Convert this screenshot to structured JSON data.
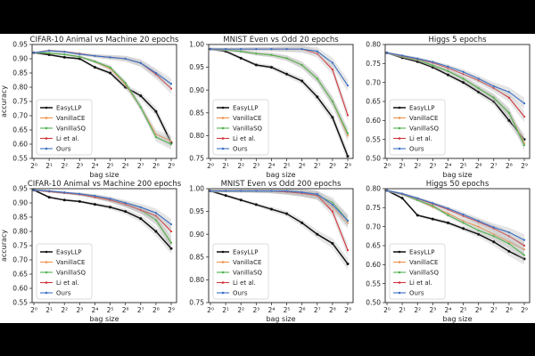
{
  "chart_data": [
    {
      "type": "line",
      "title": "CIFAR-10 Animal vs Machine 20 epochs",
      "xlabel": "bag size",
      "ylabel": "accuracy",
      "xscale": "log2",
      "x": [
        1,
        2,
        4,
        8,
        16,
        32,
        64,
        128,
        256,
        512
      ],
      "x_tick_labels": [
        "2⁰",
        "2¹",
        "2²",
        "2³",
        "2⁴",
        "2⁵",
        "2⁶",
        "2⁷",
        "2⁸",
        "2⁹"
      ],
      "ylim": [
        0.55,
        0.95
      ],
      "y_ticks": [
        0.55,
        0.6,
        0.65,
        0.7,
        0.75,
        0.8,
        0.85,
        0.9,
        0.95
      ],
      "legend_position": "lower-left",
      "series": [
        {
          "name": "EasyLLP",
          "values": [
            0.921,
            0.914,
            0.905,
            0.9,
            0.87,
            0.85,
            0.8,
            0.77,
            0.715,
            0.605
          ]
        },
        {
          "name": "VanillaCE",
          "values": [
            0.921,
            0.92,
            0.915,
            0.907,
            0.89,
            0.865,
            0.81,
            0.73,
            0.635,
            0.61
          ]
        },
        {
          "name": "VanillaSQ",
          "values": [
            0.921,
            0.92,
            0.915,
            0.907,
            0.89,
            0.87,
            0.815,
            0.73,
            0.625,
            0.6
          ]
        },
        {
          "name": "Li et al.",
          "values": [
            0.921,
            0.929,
            0.925,
            0.918,
            0.91,
            0.905,
            0.9,
            0.885,
            0.845,
            0.795
          ]
        },
        {
          "name": "Ours",
          "values": [
            0.921,
            0.928,
            0.924,
            0.916,
            0.91,
            0.905,
            0.9,
            0.885,
            0.85,
            0.812
          ]
        }
      ]
    },
    {
      "type": "line",
      "title": "MNIST Even vs Odd 20 epochs",
      "xlabel": "bag size",
      "ylabel": "",
      "xscale": "log2",
      "x": [
        1,
        2,
        4,
        8,
        16,
        32,
        64,
        128,
        256,
        512
      ],
      "x_tick_labels": [
        "2⁰",
        "2¹",
        "2²",
        "2³",
        "2⁴",
        "2⁵",
        "2⁶",
        "2⁷",
        "2⁸",
        "2⁹"
      ],
      "ylim": [
        0.75,
        1.0
      ],
      "y_ticks": [
        0.75,
        0.8,
        0.85,
        0.9,
        0.95,
        1.0
      ],
      "legend_position": "lower-left",
      "series": [
        {
          "name": "EasyLLP",
          "values": [
            0.99,
            0.985,
            0.97,
            0.955,
            0.95,
            0.935,
            0.92,
            0.885,
            0.84,
            0.755
          ]
        },
        {
          "name": "VanillaCE",
          "values": [
            0.99,
            0.988,
            0.985,
            0.98,
            0.977,
            0.97,
            0.955,
            0.925,
            0.875,
            0.8
          ]
        },
        {
          "name": "VanillaSQ",
          "values": [
            0.99,
            0.988,
            0.985,
            0.98,
            0.977,
            0.97,
            0.955,
            0.925,
            0.875,
            0.805
          ]
        },
        {
          "name": "Li et al.",
          "values": [
            0.99,
            0.99,
            0.99,
            0.99,
            0.99,
            0.99,
            0.99,
            0.98,
            0.945,
            0.845
          ]
        },
        {
          "name": "Ours",
          "values": [
            0.99,
            0.99,
            0.99,
            0.99,
            0.99,
            0.99,
            0.99,
            0.985,
            0.96,
            0.91
          ]
        }
      ]
    },
    {
      "type": "line",
      "title": "Higgs 5 epochs",
      "xlabel": "bag size",
      "ylabel": "",
      "xscale": "log2",
      "x": [
        1,
        2,
        4,
        8,
        16,
        32,
        64,
        128,
        256,
        512
      ],
      "x_tick_labels": [
        "2⁰",
        "2¹",
        "2²",
        "2³",
        "2⁴",
        "2⁵",
        "2⁶",
        "2⁷",
        "2⁸",
        "2⁹"
      ],
      "ylim": [
        0.5,
        0.8
      ],
      "y_ticks": [
        0.5,
        0.55,
        0.6,
        0.65,
        0.7,
        0.75,
        0.8
      ],
      "legend_position": "lower-left",
      "series": [
        {
          "name": "EasyLLP",
          "values": [
            0.778,
            0.765,
            0.755,
            0.74,
            0.72,
            0.7,
            0.675,
            0.65,
            0.6,
            0.55
          ]
        },
        {
          "name": "VanillaCE",
          "values": [
            0.778,
            0.768,
            0.76,
            0.745,
            0.73,
            0.71,
            0.685,
            0.66,
            0.62,
            0.54
          ]
        },
        {
          "name": "VanillaSQ",
          "values": [
            0.778,
            0.768,
            0.76,
            0.745,
            0.73,
            0.71,
            0.685,
            0.66,
            0.62,
            0.535
          ]
        },
        {
          "name": "Li et al.",
          "values": [
            0.778,
            0.77,
            0.762,
            0.752,
            0.738,
            0.722,
            0.705,
            0.685,
            0.66,
            0.61
          ]
        },
        {
          "name": "Ours",
          "values": [
            0.778,
            0.771,
            0.763,
            0.754,
            0.742,
            0.728,
            0.71,
            0.69,
            0.675,
            0.645
          ]
        }
      ]
    },
    {
      "type": "line",
      "title": "CIFAR-10 Animal vs Machine 200 epochs",
      "xlabel": "bag size",
      "ylabel": "accuracy",
      "xscale": "log2",
      "x": [
        1,
        2,
        4,
        8,
        16,
        32,
        64,
        128,
        256,
        512
      ],
      "x_tick_labels": [
        "2⁰",
        "2¹",
        "2²",
        "2³",
        "2⁴",
        "2⁵",
        "2⁶",
        "2⁷",
        "2⁸",
        "2⁹"
      ],
      "ylim": [
        0.55,
        0.95
      ],
      "y_ticks": [
        0.55,
        0.6,
        0.65,
        0.7,
        0.75,
        0.8,
        0.85,
        0.9,
        0.95
      ],
      "legend_position": "lower-left",
      "series": [
        {
          "name": "EasyLLP",
          "values": [
            0.945,
            0.92,
            0.91,
            0.905,
            0.895,
            0.885,
            0.87,
            0.845,
            0.8,
            0.74
          ]
        },
        {
          "name": "VanillaCE",
          "values": [
            0.945,
            0.94,
            0.935,
            0.93,
            0.922,
            0.91,
            0.895,
            0.875,
            0.84,
            0.76
          ]
        },
        {
          "name": "VanillaSQ",
          "values": [
            0.945,
            0.94,
            0.935,
            0.93,
            0.922,
            0.91,
            0.895,
            0.875,
            0.84,
            0.76
          ]
        },
        {
          "name": "Li et al.",
          "values": [
            0.945,
            0.94,
            0.935,
            0.93,
            0.92,
            0.91,
            0.895,
            0.875,
            0.855,
            0.8
          ]
        },
        {
          "name": "Ours",
          "values": [
            0.945,
            0.942,
            0.937,
            0.932,
            0.925,
            0.915,
            0.9,
            0.885,
            0.865,
            0.825
          ]
        }
      ]
    },
    {
      "type": "line",
      "title": "MNIST Even vs Odd 200 epochs",
      "xlabel": "bag size",
      "ylabel": "",
      "xscale": "log2",
      "x": [
        1,
        2,
        4,
        8,
        16,
        32,
        64,
        128,
        256,
        512
      ],
      "x_tick_labels": [
        "2⁰",
        "2¹",
        "2²",
        "2³",
        "2⁴",
        "2⁵",
        "2⁶",
        "2⁷",
        "2⁸",
        "2⁹"
      ],
      "ylim": [
        0.75,
        1.0
      ],
      "y_ticks": [
        0.75,
        0.8,
        0.85,
        0.9,
        0.95,
        1.0
      ],
      "legend_position": "lower-left",
      "series": [
        {
          "name": "EasyLLP",
          "values": [
            0.995,
            0.985,
            0.975,
            0.965,
            0.955,
            0.945,
            0.925,
            0.9,
            0.88,
            0.835
          ]
        },
        {
          "name": "VanillaCE",
          "values": [
            0.995,
            0.995,
            0.995,
            0.995,
            0.995,
            0.993,
            0.99,
            0.985,
            0.96,
            0.925
          ]
        },
        {
          "name": "VanillaSQ",
          "values": [
            0.995,
            0.995,
            0.995,
            0.995,
            0.995,
            0.993,
            0.99,
            0.985,
            0.97,
            0.93
          ]
        },
        {
          "name": "Li et al.",
          "values": [
            0.995,
            0.995,
            0.995,
            0.995,
            0.995,
            0.993,
            0.99,
            0.985,
            0.95,
            0.865
          ]
        },
        {
          "name": "Ours",
          "values": [
            0.995,
            0.995,
            0.995,
            0.995,
            0.995,
            0.995,
            0.992,
            0.988,
            0.965,
            0.93
          ]
        }
      ]
    },
    {
      "type": "line",
      "title": "Higgs 50 epochs",
      "xlabel": "bag size",
      "ylabel": "",
      "xscale": "log2",
      "x": [
        1,
        2,
        4,
        8,
        16,
        32,
        64,
        128,
        256,
        512
      ],
      "x_tick_labels": [
        "2⁰",
        "2¹",
        "2²",
        "2³",
        "2⁴",
        "2⁵",
        "2⁶",
        "2⁷",
        "2⁸",
        "2⁹"
      ],
      "ylim": [
        0.5,
        0.8
      ],
      "y_ticks": [
        0.5,
        0.55,
        0.6,
        0.65,
        0.7,
        0.75,
        0.8
      ],
      "legend_position": "lower-left",
      "series": [
        {
          "name": "EasyLLP",
          "values": [
            0.795,
            0.775,
            0.73,
            0.72,
            0.71,
            0.695,
            0.68,
            0.66,
            0.635,
            0.615
          ]
        },
        {
          "name": "VanillaCE",
          "values": [
            0.795,
            0.785,
            0.77,
            0.752,
            0.735,
            0.715,
            0.7,
            0.68,
            0.66,
            0.64
          ]
        },
        {
          "name": "VanillaSQ",
          "values": [
            0.795,
            0.785,
            0.77,
            0.755,
            0.73,
            0.71,
            0.69,
            0.675,
            0.655,
            0.625
          ]
        },
        {
          "name": "Li et al.",
          "values": [
            0.795,
            0.786,
            0.774,
            0.76,
            0.745,
            0.728,
            0.712,
            0.695,
            0.675,
            0.65
          ]
        },
        {
          "name": "Ours",
          "values": [
            0.795,
            0.787,
            0.775,
            0.762,
            0.748,
            0.732,
            0.715,
            0.698,
            0.685,
            0.665
          ]
        }
      ]
    }
  ],
  "colors": {
    "EasyLLP": "#111111",
    "VanillaCE": "#f0914a",
    "VanillaSQ": "#4fb24f",
    "Li et al.": "#d1343b",
    "Ours": "#3a6fc4",
    "band": "#b8b8b8",
    "background": "#000000",
    "panel": "#ffffff"
  }
}
